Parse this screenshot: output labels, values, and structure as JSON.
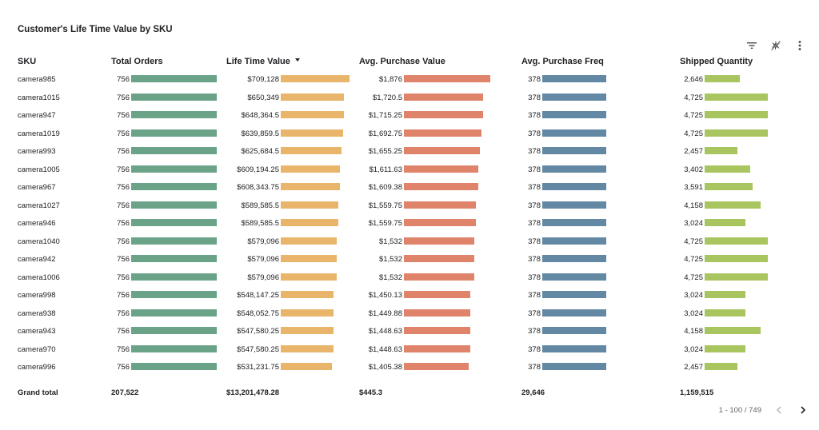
{
  "title": "Customer's Life Time Value by SKU",
  "toolbar": {
    "icons": [
      "filter-icon",
      "smart-insights-icon",
      "more-vert-icon"
    ]
  },
  "columns": {
    "sku": "SKU",
    "total_orders": "Total Orders",
    "ltv": "Life Time Value",
    "avg_purchase": "Avg. Purchase Value",
    "avg_freq": "Avg. Purchase Freq",
    "shipped": "Shipped Quantity"
  },
  "sorted_column": "ltv",
  "colors": {
    "total_orders": "#6aa387",
    "ltv": "#e9b56b",
    "avg_purchase": "#e0836b",
    "avg_freq": "#6288a3",
    "shipped": "#a8c55f"
  },
  "bar_max": {
    "total_orders": 756,
    "ltv": 709128,
    "avg_purchase": 1876,
    "avg_freq": 378,
    "shipped": 4725
  },
  "rows": [
    {
      "sku": "camera985",
      "total_orders": "756",
      "ltv": "$709,128",
      "ltv_value": 709128,
      "avg_purchase": "$1,876",
      "avg_purchase_value": 1876,
      "avg_freq": "378",
      "avg_freq_value": 378,
      "shipped": "2,646",
      "shipped_value": 2646
    },
    {
      "sku": "camera1015",
      "total_orders": "756",
      "ltv": "$650,349",
      "ltv_value": 650349,
      "avg_purchase": "$1,720.5",
      "avg_purchase_value": 1720.5,
      "avg_freq": "378",
      "avg_freq_value": 378,
      "shipped": "4,725",
      "shipped_value": 4725
    },
    {
      "sku": "camera947",
      "total_orders": "756",
      "ltv": "$648,364.5",
      "ltv_value": 648364.5,
      "avg_purchase": "$1,715.25",
      "avg_purchase_value": 1715.25,
      "avg_freq": "378",
      "avg_freq_value": 378,
      "shipped": "4,725",
      "shipped_value": 4725
    },
    {
      "sku": "camera1019",
      "total_orders": "756",
      "ltv": "$639,859.5",
      "ltv_value": 639859.5,
      "avg_purchase": "$1,692.75",
      "avg_purchase_value": 1692.75,
      "avg_freq": "378",
      "avg_freq_value": 378,
      "shipped": "4,725",
      "shipped_value": 4725
    },
    {
      "sku": "camera993",
      "total_orders": "756",
      "ltv": "$625,684.5",
      "ltv_value": 625684.5,
      "avg_purchase": "$1,655.25",
      "avg_purchase_value": 1655.25,
      "avg_freq": "378",
      "avg_freq_value": 378,
      "shipped": "2,457",
      "shipped_value": 2457
    },
    {
      "sku": "camera1005",
      "total_orders": "756",
      "ltv": "$609,194.25",
      "ltv_value": 609194.25,
      "avg_purchase": "$1,611.63",
      "avg_purchase_value": 1611.63,
      "avg_freq": "378",
      "avg_freq_value": 378,
      "shipped": "3,402",
      "shipped_value": 3402
    },
    {
      "sku": "camera967",
      "total_orders": "756",
      "ltv": "$608,343.75",
      "ltv_value": 608343.75,
      "avg_purchase": "$1,609.38",
      "avg_purchase_value": 1609.38,
      "avg_freq": "378",
      "avg_freq_value": 378,
      "shipped": "3,591",
      "shipped_value": 3591
    },
    {
      "sku": "camera1027",
      "total_orders": "756",
      "ltv": "$589,585.5",
      "ltv_value": 589585.5,
      "avg_purchase": "$1,559.75",
      "avg_purchase_value": 1559.75,
      "avg_freq": "378",
      "avg_freq_value": 378,
      "shipped": "4,158",
      "shipped_value": 4158
    },
    {
      "sku": "camera946",
      "total_orders": "756",
      "ltv": "$589,585.5",
      "ltv_value": 589585.5,
      "avg_purchase": "$1,559.75",
      "avg_purchase_value": 1559.75,
      "avg_freq": "378",
      "avg_freq_value": 378,
      "shipped": "3,024",
      "shipped_value": 3024
    },
    {
      "sku": "camera1040",
      "total_orders": "756",
      "ltv": "$579,096",
      "ltv_value": 579096,
      "avg_purchase": "$1,532",
      "avg_purchase_value": 1532,
      "avg_freq": "378",
      "avg_freq_value": 378,
      "shipped": "4,725",
      "shipped_value": 4725
    },
    {
      "sku": "camera942",
      "total_orders": "756",
      "ltv": "$579,096",
      "ltv_value": 579096,
      "avg_purchase": "$1,532",
      "avg_purchase_value": 1532,
      "avg_freq": "378",
      "avg_freq_value": 378,
      "shipped": "4,725",
      "shipped_value": 4725
    },
    {
      "sku": "camera1006",
      "total_orders": "756",
      "ltv": "$579,096",
      "ltv_value": 579096,
      "avg_purchase": "$1,532",
      "avg_purchase_value": 1532,
      "avg_freq": "378",
      "avg_freq_value": 378,
      "shipped": "4,725",
      "shipped_value": 4725
    },
    {
      "sku": "camera998",
      "total_orders": "756",
      "ltv": "$548,147.25",
      "ltv_value": 548147.25,
      "avg_purchase": "$1,450.13",
      "avg_purchase_value": 1450.13,
      "avg_freq": "378",
      "avg_freq_value": 378,
      "shipped": "3,024",
      "shipped_value": 3024
    },
    {
      "sku": "camera938",
      "total_orders": "756",
      "ltv": "$548,052.75",
      "ltv_value": 548052.75,
      "avg_purchase": "$1,449.88",
      "avg_purchase_value": 1449.88,
      "avg_freq": "378",
      "avg_freq_value": 378,
      "shipped": "3,024",
      "shipped_value": 3024
    },
    {
      "sku": "camera943",
      "total_orders": "756",
      "ltv": "$547,580.25",
      "ltv_value": 547580.25,
      "avg_purchase": "$1,448.63",
      "avg_purchase_value": 1448.63,
      "avg_freq": "378",
      "avg_freq_value": 378,
      "shipped": "4,158",
      "shipped_value": 4158
    },
    {
      "sku": "camera970",
      "total_orders": "756",
      "ltv": "$547,580.25",
      "ltv_value": 547580.25,
      "avg_purchase": "$1,448.63",
      "avg_purchase_value": 1448.63,
      "avg_freq": "378",
      "avg_freq_value": 378,
      "shipped": "3,024",
      "shipped_value": 3024
    },
    {
      "sku": "camera996",
      "total_orders": "756",
      "ltv": "$531,231.75",
      "ltv_value": 531231.75,
      "avg_purchase": "$1,405.38",
      "avg_purchase_value": 1405.38,
      "avg_freq": "378",
      "avg_freq_value": 378,
      "shipped": "2,457",
      "shipped_value": 2457
    }
  ],
  "totals": {
    "label": "Grand total",
    "total_orders": "207,522",
    "ltv": "$13,201,478.28",
    "avg_purchase": "$445.3",
    "avg_freq": "29,646",
    "shipped": "1,159,515"
  },
  "pagination": {
    "range": "1 - 100 / 749"
  }
}
